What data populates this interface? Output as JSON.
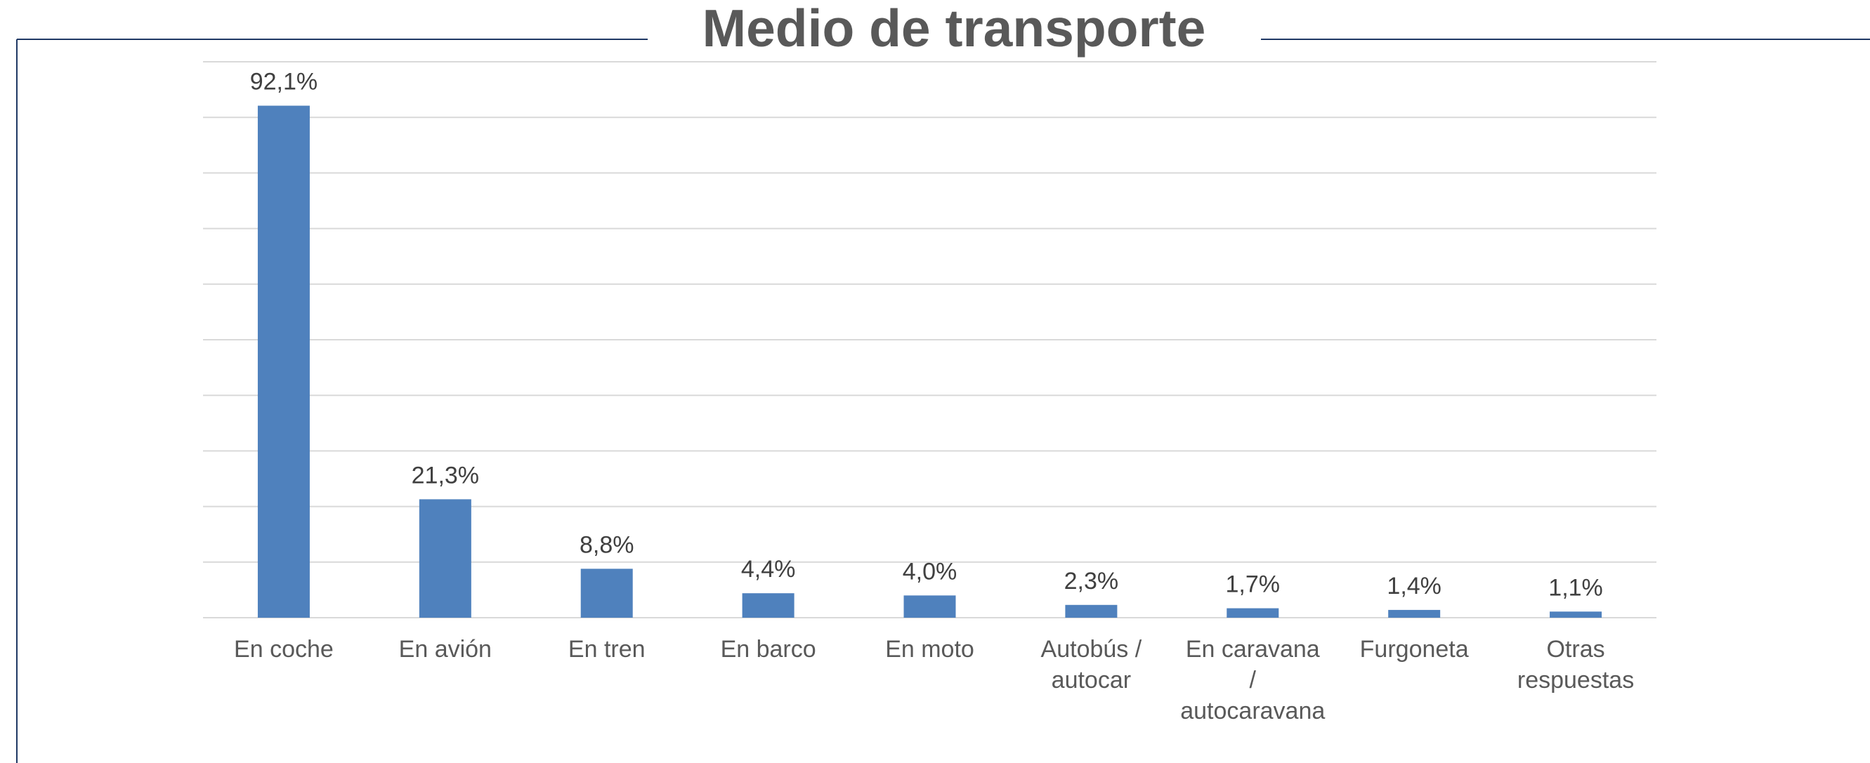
{
  "chart_data": {
    "type": "bar",
    "title": "Medio de transporte",
    "categories": [
      "En coche",
      "En avión",
      "En tren",
      "En barco",
      "En moto",
      "Autobús /\nautocar",
      "En caravana\n/\nautocaravana",
      "Furgoneta",
      "Otras\nrespuestas"
    ],
    "values": [
      92.1,
      21.3,
      8.8,
      4.4,
      4.0,
      2.3,
      1.7,
      1.4,
      1.1
    ],
    "value_labels": [
      "92,1%",
      "21,3%",
      "8,8%",
      "4,4%",
      "4,0%",
      "2,3%",
      "1,7%",
      "1,4%",
      "1,1%"
    ],
    "color": "#4f81bd",
    "ylim": [
      0,
      100
    ],
    "yticks": [
      0,
      10,
      20,
      30,
      40,
      50,
      60,
      70,
      80,
      90,
      100
    ],
    "grid": true
  }
}
